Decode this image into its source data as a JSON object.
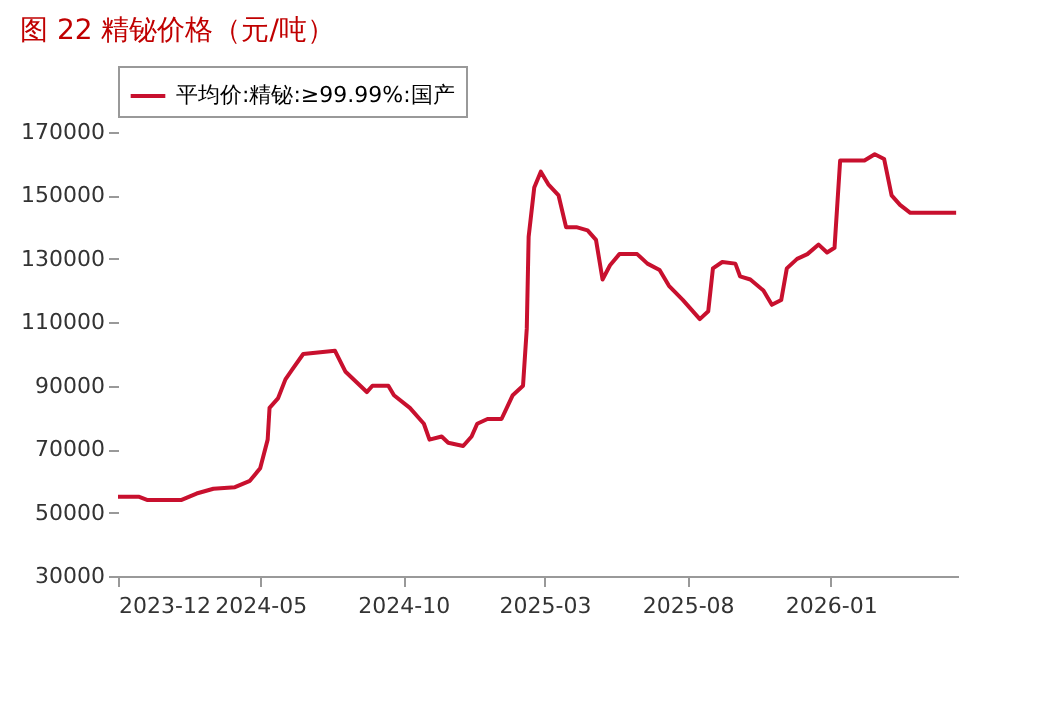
{
  "chart_data": {
    "type": "line",
    "title": "图 22 精铋价格（元/吨）",
    "x": [
      "2023-12-01",
      "2023-12-23",
      "2024-01-01",
      "2024-02-07",
      "2024-02-23",
      "2024-03-12",
      "2024-04-04",
      "2024-04-20",
      "2024-05-01",
      "2024-05-09",
      "2024-05-11",
      "2024-05-20",
      "2024-05-28",
      "2024-06-04",
      "2024-06-16",
      "2024-07-20",
      "2024-07-31",
      "2024-08-16",
      "2024-08-23",
      "2024-08-29",
      "2024-09-15",
      "2024-09-21",
      "2024-10-08",
      "2024-10-23",
      "2024-10-29",
      "2024-11-11",
      "2024-11-18",
      "2024-12-04",
      "2024-12-13",
      "2024-12-19",
      "2024-12-30",
      "2025-01-14",
      "2025-01-26",
      "2025-02-06",
      "2025-02-10",
      "2025-02-12",
      "2025-02-18",
      "2025-02-25",
      "2025-03-05",
      "2025-03-16",
      "2025-03-24",
      "2025-04-04",
      "2025-04-16",
      "2025-04-25",
      "2025-05-02",
      "2025-05-10",
      "2025-05-20",
      "2025-06-08",
      "2025-06-19",
      "2025-07-02",
      "2025-07-12",
      "2025-07-27",
      "2025-08-14",
      "2025-08-23",
      "2025-08-28",
      "2025-09-07",
      "2025-09-21",
      "2025-09-26",
      "2025-10-07",
      "2025-10-21",
      "2025-10-30",
      "2025-11-09",
      "2025-11-15",
      "2025-11-26",
      "2025-12-07",
      "2025-12-19",
      "2025-12-28",
      "2026-01-05",
      "2026-01-11",
      "2026-02-06",
      "2026-02-17",
      "2026-02-27",
      "2026-03-07",
      "2026-03-16",
      "2026-03-27",
      "2026-05-15"
    ],
    "series": [
      {
        "name": "平均价:精铋:≥99.99%:国产",
        "color": "#c8102e",
        "values": [
          55000,
          55000,
          54000,
          54000,
          56000,
          57500,
          58000,
          60000,
          64000,
          73000,
          83000,
          86000,
          92000,
          95000,
          100000,
          101000,
          94500,
          90000,
          88000,
          90000,
          90000,
          87000,
          83000,
          78000,
          73000,
          74000,
          72000,
          71000,
          74000,
          78000,
          79500,
          79500,
          87000,
          90000,
          108000,
          137000,
          152500,
          157500,
          153500,
          150000,
          140000,
          140000,
          139000,
          136000,
          123500,
          128000,
          131500,
          131500,
          128500,
          126500,
          121500,
          117000,
          111000,
          113500,
          127000,
          129000,
          128500,
          124500,
          123500,
          120000,
          115500,
          117000,
          127000,
          130000,
          131500,
          134500,
          132000,
          133500,
          161000,
          161000,
          163000,
          161500,
          150000,
          147000,
          144500,
          144500
        ]
      }
    ],
    "xlim": [
      "2023-12-01",
      "2026-05-17"
    ],
    "xticks": [
      "2023-12",
      "2024-05",
      "2024-10",
      "2025-03",
      "2025-08",
      "2026-01"
    ],
    "ylim": [
      30000,
      170000
    ],
    "yticks": [
      30000,
      50000,
      70000,
      90000,
      110000,
      130000,
      150000,
      170000
    ],
    "grid": false,
    "legend": "top",
    "marker": "none",
    "line_style": "solid"
  }
}
